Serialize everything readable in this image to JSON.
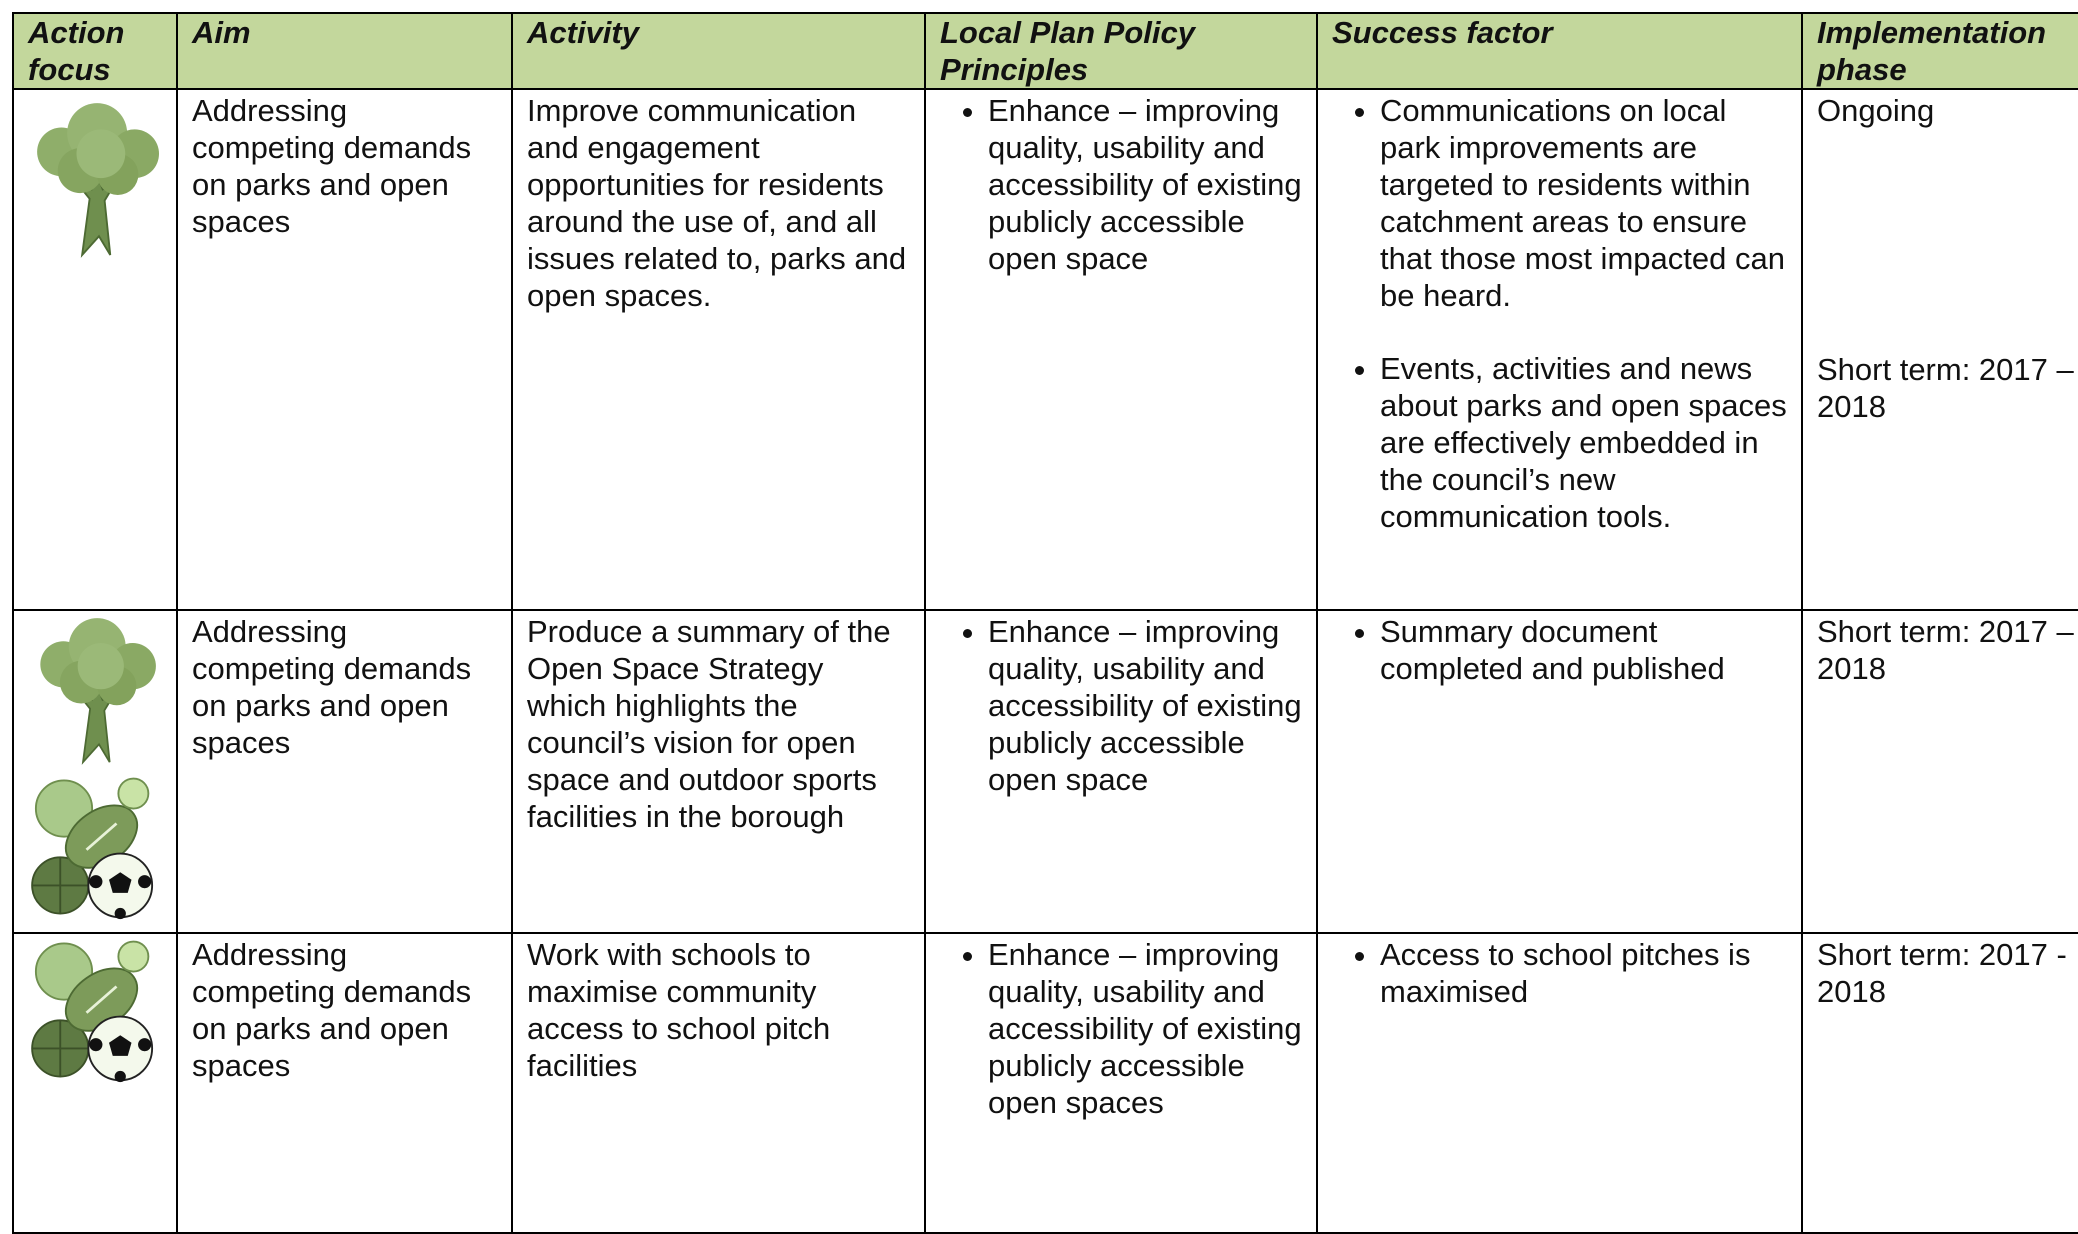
{
  "table": {
    "header": [
      "Action focus",
      "Aim",
      "Activity",
      "Local Plan Policy Principles",
      "Success factor",
      "Implementation phase"
    ],
    "rows": [
      {
        "aim": "Addressing competing demands on parks and open spaces",
        "activity": "Improve communication and engagement opportunities for residents around the use of, and all issues related to, parks and open spaces.",
        "principles": [
          "Enhance – improving quality, usability and accessibility of existing publicly accessible open space"
        ],
        "success": [
          "Communications on local park improvements are targeted to residents within catchment areas to ensure that those most impacted can be heard.",
          "Events, activities and news about parks and open spaces are effectively embedded in the council’s new communication tools."
        ],
        "phase": [
          "Ongoing",
          "Short term: 2017 – 2018"
        ]
      },
      {
        "aim": "Addressing competing demands on parks and open spaces",
        "activity": "Produce a summary of the Open Space Strategy which highlights the council’s vision for open space and outdoor sports facilities in the borough",
        "principles": [
          "Enhance – improving quality, usability and accessibility of existing publicly accessible open space"
        ],
        "success": [
          "Summary document completed and published"
        ],
        "phase": [
          "Short term: 2017 – 2018"
        ]
      },
      {
        "aim": "Addressing competing demands on parks and open spaces",
        "activity": "Work with schools to maximise community access to school pitch facilities",
        "principles": [
          "Enhance – improving quality, usability and accessibility of existing publicly accessible open spaces"
        ],
        "success": [
          "Access to school pitches is maximised"
        ],
        "phase": [
          "Short term: 2017 - 2018"
        ]
      }
    ]
  }
}
